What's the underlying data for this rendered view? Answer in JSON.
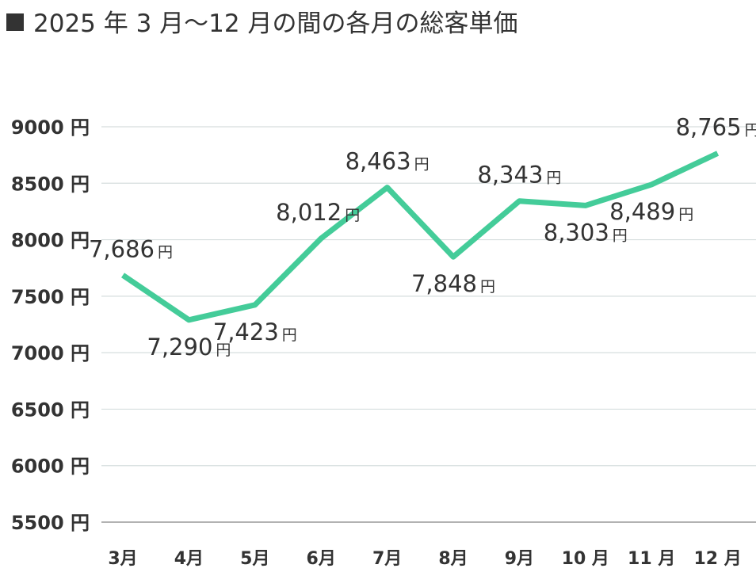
{
  "title": "2025 年 3 月～12 月の間の各月の総客単価",
  "chart_data": {
    "type": "line",
    "categories": [
      "3月",
      "4月",
      "5月",
      "6月",
      "7月",
      "8月",
      "9月",
      "10 月",
      "11 月",
      "12 月"
    ],
    "series": [
      {
        "values": [
          7686,
          7290,
          7423,
          8012,
          8463,
          7848,
          8343,
          8303,
          8489,
          8765
        ],
        "labels": [
          "7,686",
          "7,290",
          "7,423",
          "8,012",
          "8,463",
          "7,848",
          "8,343",
          "8,303",
          "8,489",
          "8,765"
        ]
      }
    ],
    "label_unit": "円",
    "ylim": [
      5500,
      9000
    ],
    "yticks": [
      5500,
      6000,
      6500,
      7000,
      7500,
      8000,
      8500,
      9000
    ],
    "ytick_unit": "円",
    "grid": true,
    "colors": {
      "line": "#44cc99",
      "grid": "#d6dede",
      "axis": "#999999",
      "text": "#333333"
    }
  }
}
